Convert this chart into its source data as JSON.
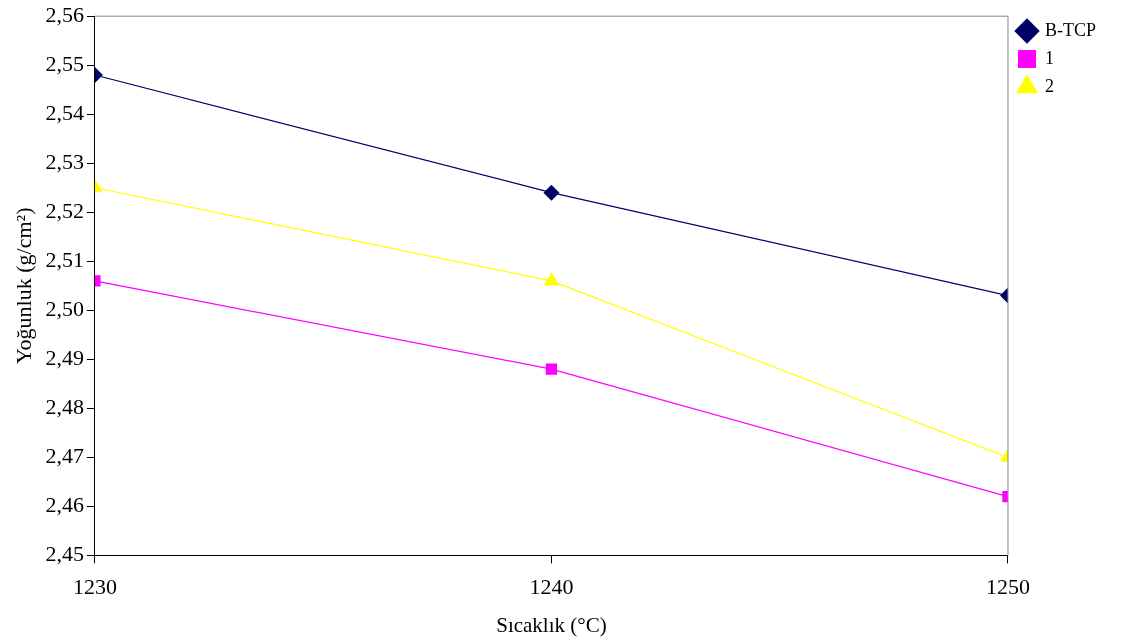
{
  "chart_data": {
    "type": "line",
    "xlabel": "Sıcaklık (°C)",
    "ylabel": "Yoğunluk (g/cm²)",
    "x": [
      1230,
      1240,
      1250
    ],
    "xlim": [
      1230,
      1250
    ],
    "xticks": [
      1230,
      1240,
      1250
    ],
    "ylim": [
      2.45,
      2.56
    ],
    "yticks": [
      {
        "value": 2.45,
        "label": "2,45"
      },
      {
        "value": 2.46,
        "label": "2,46"
      },
      {
        "value": 2.47,
        "label": "2,47"
      },
      {
        "value": 2.48,
        "label": "2,48"
      },
      {
        "value": 2.49,
        "label": "2,49"
      },
      {
        "value": 2.5,
        "label": "2,50"
      },
      {
        "value": 2.51,
        "label": "2,51"
      },
      {
        "value": 2.52,
        "label": "2,52"
      },
      {
        "value": 2.53,
        "label": "2,53"
      },
      {
        "value": 2.54,
        "label": "2,54"
      },
      {
        "value": 2.55,
        "label": "2,55"
      },
      {
        "value": 2.56,
        "label": "2,56"
      }
    ],
    "grid": false,
    "legend": "top right",
    "line_style": "solid",
    "series": [
      {
        "name": "B-TCP",
        "color": "#000066",
        "marker": "diamond",
        "values": [
          2.548,
          2.524,
          2.503
        ]
      },
      {
        "name": "1",
        "color": "#ff00ff",
        "marker": "square",
        "values": [
          2.506,
          2.488,
          2.462
        ]
      },
      {
        "name": "2",
        "color": "#ffff00",
        "marker": "triangle",
        "values": [
          2.525,
          2.506,
          2.47
        ]
      }
    ]
  }
}
